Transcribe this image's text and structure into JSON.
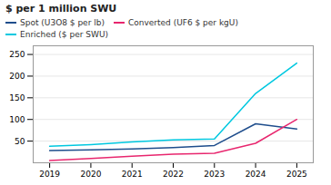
{
  "chart_data": {
    "type": "line",
    "title": "$ per 1 million SWU",
    "x": [
      2019,
      2020,
      2021,
      2022,
      2023,
      2024,
      2025
    ],
    "series": [
      {
        "name": "Spot (U3O8 $ per lb)",
        "color": "#1e4d8c",
        "values": [
          28,
          30,
          32,
          35,
          40,
          90,
          78
        ]
      },
      {
        "name": "Converted (UF6 $ per kgU)",
        "color": "#e8266e",
        "values": [
          5,
          10,
          15,
          20,
          22,
          45,
          100
        ]
      },
      {
        "name": "Enriched ($ per SWU)",
        "color": "#00c8e0",
        "values": [
          38,
          42,
          48,
          53,
          55,
          160,
          230
        ]
      }
    ],
    "xlim": [
      2018.6,
      2025.4
    ],
    "xticks": [
      2019,
      2020,
      2021,
      2022,
      2023,
      2024,
      2025
    ],
    "ylim": [
      0,
      270
    ],
    "yticks": [
      50,
      100,
      150,
      200,
      250
    ],
    "grid": true,
    "legend": "top"
  }
}
